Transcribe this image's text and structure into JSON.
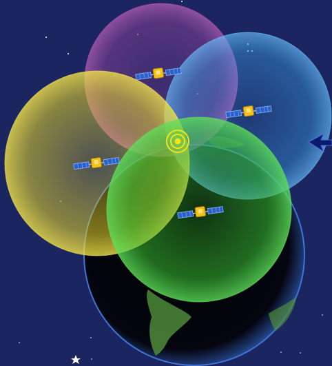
{
  "scene": {
    "background_color": "#1b2660",
    "earth": {
      "ocean_color": "#000000",
      "rim_color": "#3f74d6",
      "land_color": "#4f8a3a"
    },
    "coverage_spheres": [
      {
        "id": "magenta",
        "color": "#c24fb2"
      },
      {
        "id": "blue",
        "color": "#3aa6f0"
      },
      {
        "id": "yellow",
        "color": "#e1d12a"
      },
      {
        "id": "green",
        "color": "#39c234"
      }
    ],
    "satellites": [
      {
        "id": "sat-magenta",
        "icon": "satellite-icon"
      },
      {
        "id": "sat-blue",
        "icon": "satellite-icon"
      },
      {
        "id": "sat-yellow",
        "icon": "satellite-icon"
      },
      {
        "id": "sat-green",
        "icon": "satellite-icon"
      }
    ],
    "receiver": {
      "icon": "gps-receiver-target-icon",
      "color": "#f5e31a"
    },
    "pointer": {
      "icon": "arrow-left-icon",
      "color": "#0a1a6e"
    }
  }
}
